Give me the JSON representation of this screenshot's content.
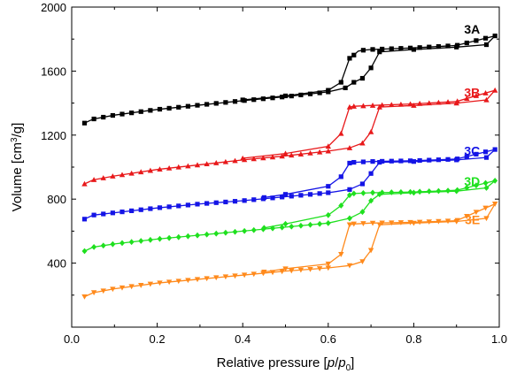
{
  "chart_data": {
    "type": "line",
    "xlabel": "Relative pressure [p/p0]",
    "ylabel": "Volume [cm3/g]",
    "xlim": [
      0.0,
      1.0
    ],
    "ylim": [
      0,
      2000
    ],
    "x_ticks": [
      "0.0",
      "0.2",
      "0.4",
      "0.6",
      "0.8",
      "1.0"
    ],
    "y_ticks": [
      "400",
      "800",
      "1200",
      "1600",
      "2000"
    ],
    "y_tick_values": [
      400,
      800,
      1200,
      1600,
      2000
    ],
    "x_tick_values": [
      0.0,
      0.2,
      0.4,
      0.6,
      0.8,
      1.0
    ],
    "grid": false,
    "legend": "inline-labels",
    "series": [
      {
        "name": "3A",
        "color": "#000000",
        "marker": "square",
        "adsorption": {
          "x": [
            0.03,
            0.05,
            0.1,
            0.2,
            0.3,
            0.4,
            0.5,
            0.6,
            0.64,
            0.66,
            0.68,
            0.7,
            0.72,
            0.8,
            0.9,
            0.97,
            0.99
          ],
          "y": [
            1275,
            1300,
            1325,
            1360,
            1388,
            1415,
            1440,
            1470,
            1495,
            1530,
            1555,
            1620,
            1720,
            1735,
            1750,
            1765,
            1820
          ]
        },
        "desorption": {
          "x": [
            0.99,
            0.9,
            0.8,
            0.7,
            0.68,
            0.67,
            0.66,
            0.65,
            0.63,
            0.6,
            0.5,
            0.4
          ],
          "y": [
            1820,
            1760,
            1745,
            1735,
            1730,
            1725,
            1700,
            1680,
            1530,
            1480,
            1445,
            1420
          ]
        }
      },
      {
        "name": "3B",
        "color": "#e8191b",
        "marker": "triangle-up",
        "adsorption": {
          "x": [
            0.03,
            0.05,
            0.1,
            0.2,
            0.3,
            0.4,
            0.5,
            0.6,
            0.65,
            0.68,
            0.7,
            0.72,
            0.8,
            0.9,
            0.97,
            0.99
          ],
          "y": [
            895,
            920,
            945,
            985,
            1015,
            1045,
            1070,
            1100,
            1120,
            1150,
            1220,
            1375,
            1385,
            1400,
            1420,
            1480
          ]
        },
        "desorption": {
          "x": [
            0.99,
            0.9,
            0.8,
            0.7,
            0.66,
            0.65,
            0.63,
            0.6,
            0.5,
            0.4
          ],
          "y": [
            1480,
            1410,
            1395,
            1385,
            1380,
            1375,
            1210,
            1130,
            1085,
            1055
          ]
        }
      },
      {
        "name": "3C",
        "color": "#1414e6",
        "marker": "square",
        "adsorption": {
          "x": [
            0.03,
            0.05,
            0.1,
            0.2,
            0.3,
            0.4,
            0.5,
            0.6,
            0.65,
            0.68,
            0.7,
            0.72,
            0.8,
            0.9,
            0.97,
            0.99
          ],
          "y": [
            675,
            700,
            715,
            745,
            770,
            790,
            815,
            840,
            860,
            895,
            960,
            1030,
            1035,
            1045,
            1060,
            1110
          ]
        },
        "desorption": {
          "x": [
            0.99,
            0.9,
            0.8,
            0.7,
            0.66,
            0.65,
            0.63,
            0.6,
            0.5,
            0.45
          ],
          "y": [
            1110,
            1050,
            1040,
            1035,
            1030,
            1025,
            940,
            880,
            830,
            810
          ]
        }
      },
      {
        "name": "3D",
        "color": "#1fe01f",
        "marker": "diamond",
        "adsorption": {
          "x": [
            0.03,
            0.05,
            0.1,
            0.2,
            0.3,
            0.4,
            0.5,
            0.6,
            0.65,
            0.68,
            0.7,
            0.72,
            0.8,
            0.9,
            0.97,
            0.99
          ],
          "y": [
            475,
            500,
            520,
            550,
            575,
            600,
            625,
            650,
            680,
            720,
            790,
            830,
            840,
            850,
            870,
            915
          ]
        },
        "desorption": {
          "x": [
            0.99,
            0.9,
            0.8,
            0.7,
            0.66,
            0.65,
            0.63,
            0.6,
            0.5,
            0.45
          ],
          "y": [
            915,
            855,
            845,
            840,
            835,
            825,
            760,
            700,
            645,
            620
          ]
        }
      },
      {
        "name": "3E",
        "color": "#ff8a1c",
        "marker": "triangle-down",
        "adsorption": {
          "x": [
            0.03,
            0.05,
            0.1,
            0.2,
            0.3,
            0.4,
            0.5,
            0.6,
            0.65,
            0.68,
            0.7,
            0.72,
            0.8,
            0.9,
            0.97,
            0.99
          ],
          "y": [
            190,
            215,
            240,
            275,
            300,
            325,
            350,
            370,
            385,
            410,
            480,
            640,
            650,
            660,
            680,
            770
          ]
        },
        "desorption": {
          "x": [
            0.99,
            0.9,
            0.8,
            0.7,
            0.66,
            0.65,
            0.63,
            0.6,
            0.5,
            0.45
          ],
          "y": [
            770,
            665,
            655,
            650,
            645,
            640,
            455,
            395,
            365,
            345
          ]
        }
      }
    ]
  }
}
